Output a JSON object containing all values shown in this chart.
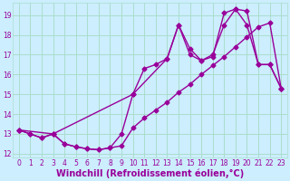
{
  "xlabel": "Windchill (Refroidissement éolien,°C)",
  "bg_color": "#cceeff",
  "line_color": "#990099",
  "grid_color": "#aaddcc",
  "xlim": [
    -0.5,
    23.5
  ],
  "ylim": [
    11.8,
    19.6
  ],
  "xticks": [
    0,
    1,
    2,
    3,
    4,
    5,
    6,
    7,
    8,
    9,
    10,
    11,
    12,
    13,
    14,
    15,
    16,
    17,
    18,
    19,
    20,
    21,
    22,
    23
  ],
  "yticks": [
    12,
    13,
    14,
    15,
    16,
    17,
    18,
    19
  ],
  "line1_x": [
    0,
    1,
    2,
    3,
    4,
    5,
    6,
    7,
    8,
    9,
    10,
    11,
    12,
    13,
    14,
    15,
    16,
    17,
    18,
    19,
    20,
    21,
    22,
    23
  ],
  "line1_y": [
    13.2,
    13.0,
    12.8,
    13.0,
    12.5,
    12.35,
    12.25,
    12.2,
    12.3,
    12.4,
    13.3,
    13.8,
    14.2,
    14.6,
    15.1,
    15.5,
    16.0,
    16.45,
    16.9,
    17.4,
    17.9,
    18.4,
    18.6,
    15.3
  ],
  "line2_x": [
    0,
    1,
    2,
    3,
    4,
    5,
    6,
    7,
    8,
    9,
    10,
    11,
    12,
    13,
    14,
    15,
    16,
    17,
    18,
    19,
    20,
    21,
    22,
    23
  ],
  "line2_y": [
    13.2,
    13.0,
    12.8,
    13.0,
    12.5,
    12.35,
    12.25,
    12.2,
    12.3,
    13.0,
    15.0,
    16.3,
    16.5,
    16.8,
    18.5,
    17.0,
    16.7,
    16.9,
    19.1,
    19.3,
    19.2,
    16.5,
    16.5,
    15.3
  ],
  "line3_x": [
    0,
    3,
    10,
    13,
    14,
    15,
    16,
    17,
    18,
    19,
    20,
    21,
    22,
    23
  ],
  "line3_y": [
    13.2,
    13.0,
    15.0,
    16.8,
    18.5,
    17.3,
    16.7,
    17.0,
    18.5,
    19.3,
    18.5,
    16.5,
    16.5,
    15.3
  ],
  "marker": "D",
  "markersize": 2.5,
  "linewidth": 1.0,
  "tick_fontsize": 5.5,
  "label_fontsize": 7.0
}
